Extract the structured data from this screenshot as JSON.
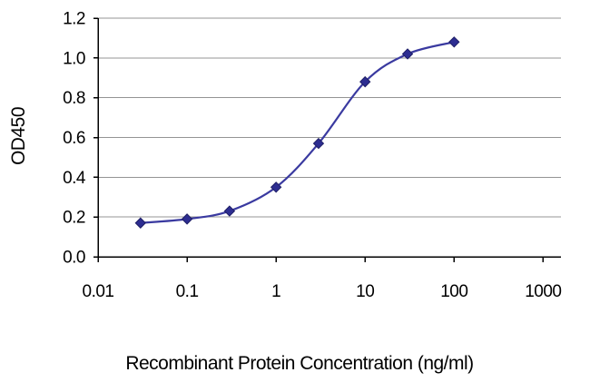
{
  "chart_data": {
    "type": "line",
    "title": "",
    "xlabel": "Recombinant Protein Concentration (ng/ml)",
    "ylabel": "OD450",
    "x_scale": "log",
    "xlim": [
      0.01,
      1000
    ],
    "x_ticks": [
      0.01,
      0.1,
      1,
      10,
      100,
      1000
    ],
    "x_tick_labels": [
      "0.01",
      "0.1",
      "1",
      "10",
      "100",
      "1000"
    ],
    "ylim": [
      0,
      1.2
    ],
    "y_ticks": [
      0,
      0.2,
      0.4,
      0.6,
      0.8,
      1.0,
      1.2
    ],
    "y_tick_labels": [
      "0.0",
      "0.2",
      "0.4",
      "0.6",
      "0.8",
      "1.0",
      "1.2"
    ],
    "grid": "horizontal",
    "legend": "none",
    "series": [
      {
        "name": "OD450",
        "marker": "diamond",
        "x": [
          0.03,
          0.1,
          0.3,
          1,
          3,
          10,
          30,
          100
        ],
        "y": [
          0.17,
          0.19,
          0.23,
          0.35,
          0.57,
          0.88,
          1.02,
          1.08
        ]
      }
    ]
  },
  "colors": {
    "background": "#ffffff",
    "grid": "#949494",
    "axis": "#000000",
    "text": "#000000",
    "line": "#3a3aa0",
    "marker_fill": "#2d2d91",
    "marker_stroke": "#1f1f66"
  }
}
